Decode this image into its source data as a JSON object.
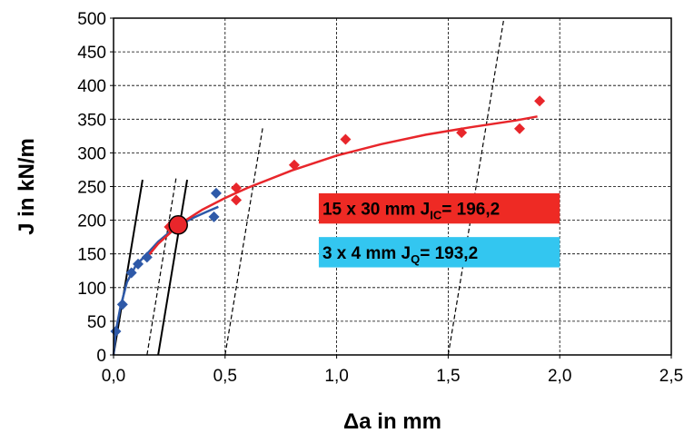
{
  "chart_data": {
    "type": "scatter",
    "xlabel": "Δa in mm",
    "ylabel": "J in kN/m",
    "xlim": [
      0,
      2.5
    ],
    "ylim": [
      0,
      500
    ],
    "x_ticks": [
      "0,0",
      "0,5",
      "1,0",
      "1,5",
      "2,0",
      "2,5"
    ],
    "y_ticks": [
      "0",
      "50",
      "100",
      "150",
      "200",
      "250",
      "300",
      "350",
      "400",
      "450",
      "500"
    ],
    "grid": "dashed",
    "series": [
      {
        "color": "#2e59a8",
        "marker": "diamond",
        "points": [
          {
            "x": 0.01,
            "y": 35
          },
          {
            "x": 0.04,
            "y": 75
          },
          {
            "x": 0.08,
            "y": 122
          },
          {
            "x": 0.11,
            "y": 135
          },
          {
            "x": 0.15,
            "y": 145
          },
          {
            "x": 0.3,
            "y": 195
          },
          {
            "x": 0.45,
            "y": 205
          },
          {
            "x": 0.46,
            "y": 240
          }
        ],
        "fit": [
          {
            "x": 0.0,
            "y": 0
          },
          {
            "x": 0.01,
            "y": 35
          },
          {
            "x": 0.03,
            "y": 70
          },
          {
            "x": 0.06,
            "y": 108
          },
          {
            "x": 0.1,
            "y": 133
          },
          {
            "x": 0.15,
            "y": 150
          },
          {
            "x": 0.2,
            "y": 168
          },
          {
            "x": 0.25,
            "y": 182
          },
          {
            "x": 0.3,
            "y": 194
          },
          {
            "x": 0.36,
            "y": 204
          },
          {
            "x": 0.42,
            "y": 213
          },
          {
            "x": 0.47,
            "y": 220
          }
        ]
      },
      {
        "color": "#e8262b",
        "marker": "diamond",
        "points": [
          {
            "x": 0.25,
            "y": 190
          },
          {
            "x": 0.55,
            "y": 248
          },
          {
            "x": 0.55,
            "y": 230
          },
          {
            "x": 0.81,
            "y": 282
          },
          {
            "x": 1.04,
            "y": 320
          },
          {
            "x": 1.56,
            "y": 330
          },
          {
            "x": 1.82,
            "y": 336
          },
          {
            "x": 1.91,
            "y": 377
          }
        ],
        "fit": [
          {
            "x": 0.15,
            "y": 145
          },
          {
            "x": 0.2,
            "y": 165
          },
          {
            "x": 0.3,
            "y": 195
          },
          {
            "x": 0.4,
            "y": 216
          },
          {
            "x": 0.5,
            "y": 233
          },
          {
            "x": 0.6,
            "y": 248
          },
          {
            "x": 0.8,
            "y": 274
          },
          {
            "x": 1.0,
            "y": 296
          },
          {
            "x": 1.2,
            "y": 313
          },
          {
            "x": 1.4,
            "y": 327
          },
          {
            "x": 1.6,
            "y": 338
          },
          {
            "x": 1.8,
            "y": 348
          },
          {
            "x": 1.9,
            "y": 354
          }
        ]
      }
    ],
    "reference_lines": [
      {
        "style": "solid",
        "x1": 0.0,
        "y1": 0,
        "x2": 0.13,
        "y2": 260
      },
      {
        "style": "solid",
        "x1": 0.2,
        "y1": 0,
        "x2": 0.33,
        "y2": 260
      },
      {
        "style": "dashed",
        "x1": 0.15,
        "y1": 0,
        "x2": 0.28,
        "y2": 262
      },
      {
        "style": "dashed",
        "x1": 0.5,
        "y1": 0,
        "x2": 0.67,
        "y2": 340
      },
      {
        "style": "dashed",
        "x1": 1.5,
        "y1": 0,
        "x2": 1.75,
        "y2": 500
      }
    ],
    "highlight_point": {
      "x": 0.29,
      "y": 193,
      "color": "#e8262b"
    },
    "annotations": [
      {
        "text_main": "15 x 30 mm J",
        "text_sub": "IC",
        "text_tail": "= 196,2",
        "box_color": "#ee2a24",
        "x_from": 0.92,
        "x_to": 2.0,
        "y_from": 195,
        "y_to": 240
      },
      {
        "text_main": "3 x 4 mm J",
        "text_sub": "Q",
        "text_tail": "= 193,2",
        "box_color": "#33c6f0",
        "x_from": 0.92,
        "x_to": 2.0,
        "y_from": 130,
        "y_to": 175
      }
    ]
  }
}
